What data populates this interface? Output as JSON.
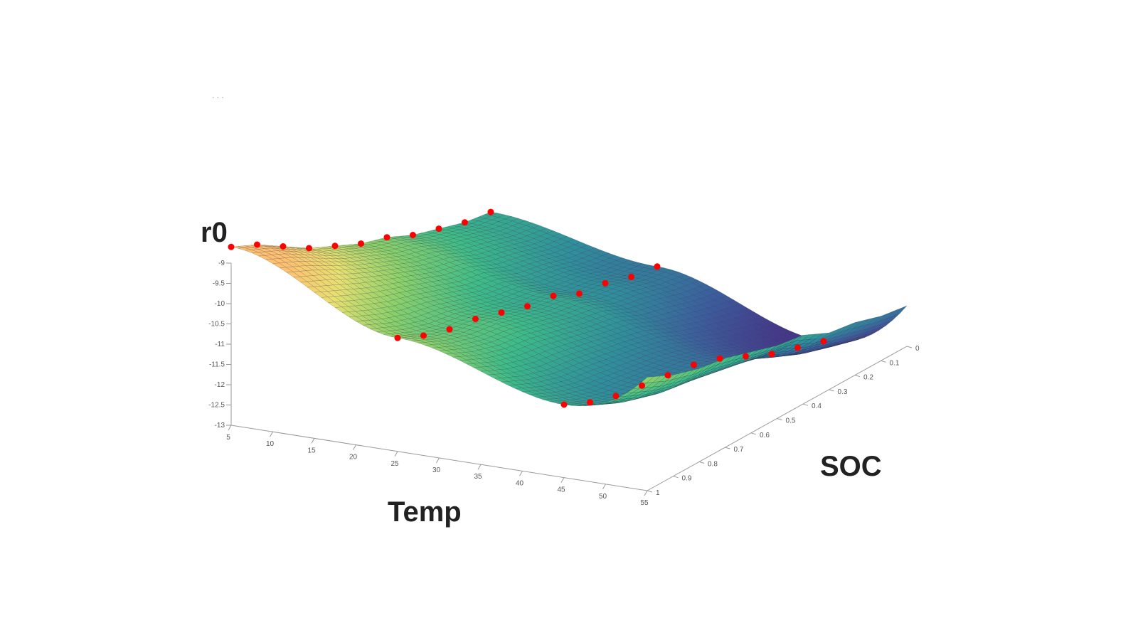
{
  "chart_data": {
    "type": "surface",
    "zlabel": "r0",
    "xlabel": "Temp",
    "ylabel": "SOC",
    "corner_mark": ". . .",
    "x_ticks": [
      5,
      10,
      15,
      20,
      25,
      30,
      35,
      40,
      45,
      50,
      55
    ],
    "y_ticks": [
      0,
      0.1,
      0.2,
      0.3,
      0.4,
      0.5,
      0.6,
      0.7,
      0.8,
      0.9,
      1
    ],
    "z_ticks": [
      -9,
      -9.5,
      -10,
      -10.5,
      -11,
      -11.5,
      -12,
      -12.5,
      -13
    ],
    "xlim": [
      5,
      55
    ],
    "ylim": [
      0,
      1
    ],
    "zlim": [
      -13,
      -9
    ],
    "grid_x": [
      5,
      25,
      45
    ],
    "grid_y": [
      0,
      0.1,
      0.2,
      0.3,
      0.4,
      0.5,
      0.6,
      0.7,
      0.8,
      0.9,
      1
    ],
    "grid_z": [
      [
        -8.6,
        -8.9,
        -9.3,
        -9.7,
        -10.0,
        -10.3,
        -10.5,
        -10.8,
        -11.0,
        -11.2,
        -11.3
      ],
      [
        -10.2,
        -10.5,
        -10.7,
        -10.8,
        -11.0,
        -11.2,
        -11.3,
        -11.6,
        -11.7,
        -11.9,
        -12.0
      ],
      [
        -11.2,
        -11.5,
        -11.7,
        -11.8,
        -11.9,
        -12.0,
        -12.2,
        -12.5,
        -12.8,
        -13.0,
        -13.2
      ]
    ],
    "colormap": [
      "#44378a",
      "#3b5f9e",
      "#2f8f9c",
      "#3cbb88",
      "#8bd16a",
      "#e8e070",
      "#ffc070"
    ],
    "marker_color": "#ff0000"
  }
}
